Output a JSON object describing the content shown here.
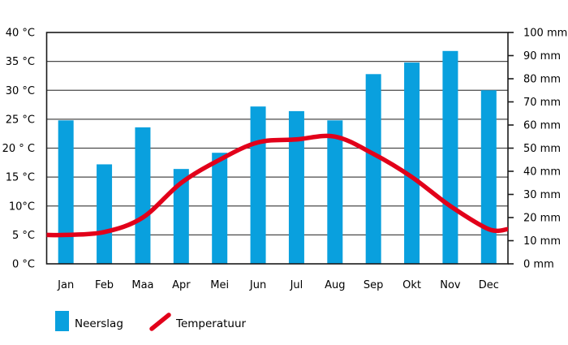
{
  "chart": {
    "colors": {
      "bar": "#09a0de",
      "line": "#e2001a",
      "grid": "#4a4a4a",
      "border": "#1a1a1a",
      "text": "#000000",
      "background": "#ffffff"
    }
  },
  "chart_data": {
    "type": "bar+line",
    "categories": [
      "Jan",
      "Feb",
      "Maa",
      "Apr",
      "Mei",
      "Jun",
      "Jul",
      "Aug",
      "Sep",
      "Okt",
      "Nov",
      "Dec"
    ],
    "series": [
      {
        "name": "Neerslag",
        "type": "bar",
        "axis": "right",
        "unit": "mm",
        "values": [
          62,
          43,
          59,
          41,
          48,
          68,
          66,
          62,
          82,
          87,
          92,
          75
        ]
      },
      {
        "name": "Temperatuur",
        "type": "line",
        "axis": "left",
        "unit": "°C",
        "values": [
          5,
          5.5,
          8,
          14,
          18,
          21,
          21.5,
          22,
          19,
          15,
          10,
          6
        ]
      }
    ],
    "left_axis": {
      "labels": [
        "40 °C",
        "35 °C",
        "30 °C",
        "25 °C",
        "20 ° C",
        "15 °C",
        "10°C",
        "5 °C",
        "0 °C"
      ],
      "min": 0,
      "max": 40,
      "step": 5
    },
    "right_axis": {
      "labels": [
        "100 mm",
        "90 mm",
        "80 mm",
        "70 mm",
        "60 mm",
        "50 mm",
        "40 mm",
        "30 mm",
        "20 mm",
        "10 mm",
        "0 mm"
      ],
      "min": 0,
      "max": 100,
      "step": 10
    },
    "title": "",
    "grid": "horizontal",
    "legend_position": "bottom"
  },
  "legend": {
    "bar_label": "Neerslag",
    "line_label": "Temperatuur"
  }
}
